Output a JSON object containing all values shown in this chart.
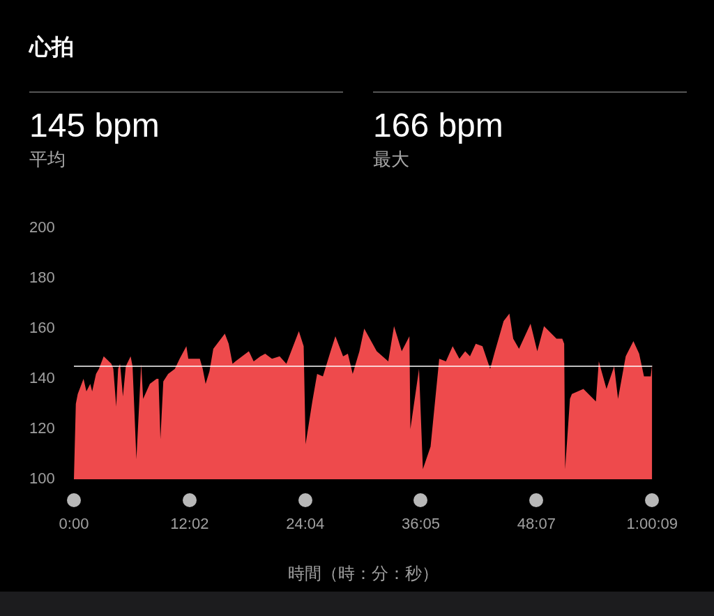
{
  "chart_data": {
    "type": "area",
    "title": "心拍",
    "annotations": [
      "145 bpm",
      "平均",
      "166 bpm",
      "最大"
    ],
    "xlabel": "時間（時：分：秒）",
    "x": [
      0,
      0.2,
      0.4,
      1.0,
      1.3,
      1.7,
      1.9,
      2.3,
      2.6,
      3.1,
      3.9,
      4.1,
      4.4,
      4.6,
      4.8,
      5.1,
      5.4,
      5.9,
      6.1,
      6.5,
      7.0,
      7.2,
      7.9,
      8.6,
      8.8,
      9.0,
      9.3,
      9.8,
      10.5,
      11.0,
      11.7,
      11.9,
      13.1,
      13.4,
      13.7,
      14.1,
      14.5,
      15.7,
      16.1,
      16.5,
      16.8,
      18.2,
      18.7,
      19.4,
      19.9,
      20.6,
      21.4,
      22.1,
      22.9,
      23.4,
      23.9,
      24.1,
      24.8,
      25.3,
      25.9,
      26.7,
      27.2,
      28.0,
      28.5,
      29.0,
      29.7,
      30.2,
      31.5,
      32.7,
      33.3,
      34.1,
      34.9,
      35.0,
      35.9,
      36.3,
      37.1,
      37.9,
      38.0,
      38.7,
      39.4,
      40.1,
      40.7,
      41.2,
      41.8,
      42.5,
      43.3,
      43.8,
      44.7,
      45.3,
      45.7,
      46.3,
      47.5,
      48.2,
      48.9,
      50.2,
      50.8,
      51.0,
      51.1,
      51.6,
      51.8,
      53.0,
      54.3,
      54.6,
      55.4,
      56.2,
      56.6,
      57.4,
      58.2,
      58.8,
      59.3,
      60.0,
      60.15
    ],
    "series": [
      {
        "color": "#ee4a4c",
        "values": [
          100,
          130,
          134,
          140,
          135,
          138,
          135,
          142,
          144,
          149,
          146,
          144,
          129,
          144,
          146,
          133,
          145,
          149,
          145,
          108,
          146,
          132,
          138,
          140,
          140,
          116,
          139,
          142,
          144,
          148,
          153,
          148,
          148,
          144,
          138,
          143,
          152,
          158,
          154,
          146,
          147,
          151,
          147,
          149,
          150,
          148,
          149,
          146,
          154,
          159,
          153,
          114,
          131,
          142,
          141,
          151,
          157,
          149,
          150,
          142,
          151,
          160,
          151,
          147,
          161,
          151,
          157,
          120,
          144,
          104,
          113,
          144,
          148,
          147,
          153,
          148,
          151,
          149,
          154,
          153,
          144,
          151,
          163,
          166,
          156,
          152,
          162,
          151,
          161,
          156,
          156,
          154,
          104,
          132,
          134,
          136,
          131,
          147,
          136,
          145,
          132,
          149,
          155,
          150,
          141,
          141,
          146
        ]
      }
    ],
    "xlim": [
      0,
      60.15
    ],
    "xticks": [
      {
        "value": 0,
        "label": "0:00"
      },
      {
        "value": 12.033,
        "label": "12:02"
      },
      {
        "value": 24.067,
        "label": "24:04"
      },
      {
        "value": 36.083,
        "label": "36:05"
      },
      {
        "value": 48.117,
        "label": "48:07"
      },
      {
        "value": 60.15,
        "label": "1:00:09"
      }
    ],
    "ylim": [
      100,
      200
    ],
    "yticks": [
      100,
      120,
      140,
      160,
      180,
      200
    ],
    "ref_lines": [
      {
        "axis": "y",
        "value": 145,
        "color": "#ffffff"
      }
    ],
    "grid": false,
    "legend": false,
    "marker": "none"
  }
}
